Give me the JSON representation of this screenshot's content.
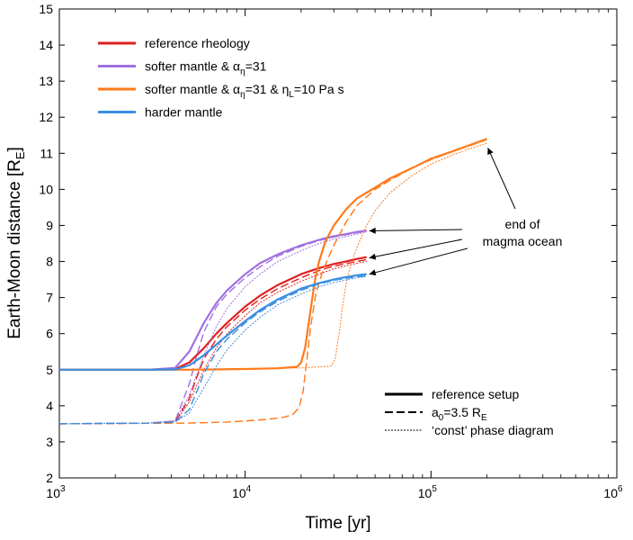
{
  "chart_data": {
    "type": "line",
    "xscale": "log",
    "xlim": [
      1000,
      1000000
    ],
    "ylim": [
      2,
      15
    ],
    "xlabel": "Time [yr]",
    "ylabel": "Earth-Moon distance [R",
    "ylabel_sub": "E",
    "ylabel_end": "]",
    "xticks": [
      {
        "value": 1000,
        "base": "10",
        "exp": "3"
      },
      {
        "value": 10000,
        "base": "10",
        "exp": "4"
      },
      {
        "value": 100000,
        "base": "10",
        "exp": "5"
      },
      {
        "value": 1000000,
        "base": "10",
        "exp": "6"
      }
    ],
    "yticks": [
      2,
      3,
      4,
      5,
      6,
      7,
      8,
      9,
      10,
      11,
      12,
      13,
      14,
      15
    ],
    "colors": {
      "reference": "#e02020",
      "softer": "#a070e0",
      "softer_eta": "#ff7a1a",
      "harder": "#3a8ee0"
    },
    "legend_colors": [
      {
        "name": "reference rheology",
        "color": "#e02020",
        "parts": [
          {
            "t": "reference rheology"
          }
        ]
      },
      {
        "name": "softer mantle & αη=31",
        "color": "#a070e0",
        "parts": [
          {
            "t": "softer mantle & α"
          },
          {
            "t": "η",
            "sub": true
          },
          {
            "t": "=31"
          }
        ]
      },
      {
        "name": "softer mantle & αη=31 & ηL=10 Pa s",
        "color": "#ff7a1a",
        "parts": [
          {
            "t": "softer mantle & α"
          },
          {
            "t": "η",
            "sub": true
          },
          {
            "t": "=31 & η"
          },
          {
            "t": "L",
            "sub": true
          },
          {
            "t": "=10 Pa s"
          }
        ]
      },
      {
        "name": "harder mantle",
        "color": "#3a8ee0",
        "parts": [
          {
            "t": "harder mantle"
          }
        ]
      }
    ],
    "legend_styles": [
      {
        "name": "reference setup",
        "style": "solid",
        "parts": [
          {
            "t": "reference setup"
          }
        ]
      },
      {
        "name": "a0=3.5 RE",
        "style": "dashed",
        "parts": [
          {
            "t": "a"
          },
          {
            "t": "0",
            "sub": true
          },
          {
            "t": "=3.5 R"
          },
          {
            "t": "E",
            "sub": true
          }
        ]
      },
      {
        "name": "'const' phase diagram",
        "style": "dotted",
        "parts": [
          {
            "t": "‘const’ phase diagram"
          }
        ]
      }
    ],
    "annotation": {
      "line1": "end of",
      "line2": "magma ocean",
      "targets": [
        [
          45000,
          8.85
        ],
        [
          45000,
          8.1
        ],
        [
          45000,
          7.65
        ],
        [
          200000,
          11.3
        ]
      ]
    },
    "series": [
      {
        "name": "reference rheology — reference setup",
        "color": "reference",
        "style": "solid",
        "x": [
          1000,
          3000,
          4200,
          5000,
          6000,
          7000,
          8000,
          10000,
          12000,
          15000,
          20000,
          25000,
          30000,
          35000,
          40000,
          45000
        ],
        "y": [
          5.0,
          5.0,
          5.02,
          5.2,
          5.6,
          6.0,
          6.3,
          6.75,
          7.05,
          7.35,
          7.65,
          7.82,
          7.93,
          8.0,
          8.07,
          8.12
        ]
      },
      {
        "name": "reference rheology — a0=3.5 RE",
        "color": "reference",
        "style": "dashed",
        "x": [
          1000,
          3000,
          4200,
          5000,
          5500,
          6000,
          7000,
          8000,
          10000,
          12000,
          15000,
          20000,
          25000,
          30000,
          40000,
          45000
        ],
        "y": [
          3.5,
          3.52,
          3.55,
          4.2,
          4.8,
          5.3,
          5.85,
          6.2,
          6.65,
          6.95,
          7.25,
          7.55,
          7.75,
          7.87,
          8.0,
          8.05
        ]
      },
      {
        "name": "reference rheology — 'const' phase diagram",
        "color": "reference",
        "style": "dotted",
        "x": [
          1000,
          3000,
          4200,
          5000,
          6000,
          7000,
          8000,
          10000,
          12000,
          15000,
          20000,
          25000,
          30000,
          40000,
          45000
        ],
        "y": [
          3.5,
          3.52,
          3.55,
          4.1,
          5.0,
          5.6,
          6.0,
          6.5,
          6.85,
          7.15,
          7.45,
          7.65,
          7.8,
          7.95,
          8.0
        ]
      },
      {
        "name": "softer mantle — reference setup",
        "color": "softer",
        "style": "solid",
        "x": [
          1000,
          3000,
          4200,
          5000,
          6000,
          7000,
          8000,
          10000,
          12000,
          15000,
          20000,
          25000,
          30000,
          35000,
          40000,
          45000
        ],
        "y": [
          5.0,
          5.0,
          5.05,
          5.5,
          6.3,
          6.85,
          7.2,
          7.65,
          7.95,
          8.2,
          8.45,
          8.6,
          8.7,
          8.76,
          8.82,
          8.86
        ]
      },
      {
        "name": "softer mantle — a0=3.5 RE",
        "color": "softer",
        "style": "dashed",
        "x": [
          1000,
          3000,
          4200,
          5000,
          5500,
          6000,
          7000,
          8000,
          10000,
          12000,
          15000,
          20000,
          25000,
          30000,
          40000,
          45000
        ],
        "y": [
          3.5,
          3.52,
          3.58,
          4.6,
          5.4,
          6.05,
          6.75,
          7.1,
          7.55,
          7.85,
          8.15,
          8.42,
          8.58,
          8.68,
          8.8,
          8.84
        ]
      },
      {
        "name": "softer mantle — 'const' phase diagram",
        "color": "softer",
        "style": "dotted",
        "x": [
          1000,
          3000,
          4200,
          5000,
          6000,
          7000,
          8000,
          10000,
          12000,
          15000,
          20000,
          25000,
          30000,
          40000,
          45000
        ],
        "y": [
          3.5,
          3.52,
          3.58,
          4.3,
          5.4,
          6.2,
          6.7,
          7.3,
          7.65,
          8.0,
          8.3,
          8.5,
          8.62,
          8.76,
          8.82
        ]
      },
      {
        "name": "softer mantle & etaL — reference setup",
        "color": "softer_eta",
        "style": "solid",
        "x": [
          1000,
          5000,
          10000,
          15000,
          19000,
          20000,
          21000,
          22000,
          23000,
          24000,
          25000,
          27000,
          30000,
          35000,
          40000,
          50000,
          60000,
          80000,
          100000,
          130000,
          160000,
          200000
        ],
        "y": [
          5.0,
          5.0,
          5.02,
          5.04,
          5.08,
          5.2,
          5.6,
          6.3,
          7.0,
          7.6,
          8.0,
          8.55,
          9.0,
          9.45,
          9.75,
          10.05,
          10.3,
          10.6,
          10.85,
          11.05,
          11.22,
          11.4
        ]
      },
      {
        "name": "softer mantle & etaL — a0=3.5 RE",
        "color": "softer_eta",
        "style": "dashed",
        "x": [
          1000,
          5000,
          8000,
          10000,
          13000,
          16000,
          18000,
          19500,
          20500,
          21500,
          22500,
          24000,
          26000,
          28000,
          30000,
          35000,
          40000,
          50000,
          60000,
          80000,
          100000,
          130000,
          160000,
          200000
        ],
        "y": [
          3.5,
          3.52,
          3.55,
          3.58,
          3.62,
          3.68,
          3.75,
          3.95,
          4.4,
          5.3,
          6.2,
          7.1,
          7.7,
          8.1,
          8.45,
          9.1,
          9.55,
          10.0,
          10.25,
          10.6,
          10.82,
          11.05,
          11.2,
          11.38
        ]
      },
      {
        "name": "softer mantle & etaL — 'const' phase diagram",
        "color": "softer_eta",
        "style": "dotted",
        "x": [
          1000,
          5000,
          10000,
          20000,
          29000,
          30500,
          32000,
          33500,
          35000,
          37000,
          40000,
          45000,
          50000,
          60000,
          80000,
          100000,
          130000,
          160000,
          200000
        ],
        "y": [
          5.0,
          5.0,
          5.02,
          5.05,
          5.1,
          5.3,
          6.0,
          6.8,
          7.4,
          7.9,
          8.4,
          9.0,
          9.4,
          9.9,
          10.4,
          10.7,
          10.95,
          11.12,
          11.28
        ]
      },
      {
        "name": "harder mantle — reference setup",
        "color": "harder",
        "style": "solid",
        "x": [
          1000,
          3000,
          4200,
          5000,
          6000,
          7000,
          8000,
          10000,
          12000,
          15000,
          20000,
          25000,
          30000,
          35000,
          40000,
          45000
        ],
        "y": [
          5.0,
          5.0,
          5.01,
          5.12,
          5.4,
          5.7,
          5.95,
          6.35,
          6.65,
          6.95,
          7.25,
          7.4,
          7.5,
          7.57,
          7.62,
          7.65
        ]
      },
      {
        "name": "harder mantle — a0=3.5 RE",
        "color": "harder",
        "style": "dashed",
        "x": [
          1000,
          3000,
          4200,
          5000,
          5500,
          6000,
          7000,
          8000,
          10000,
          12000,
          15000,
          20000,
          25000,
          30000,
          40000,
          45000
        ],
        "y": [
          3.5,
          3.52,
          3.55,
          3.9,
          4.4,
          4.9,
          5.5,
          5.85,
          6.3,
          6.6,
          6.9,
          7.2,
          7.38,
          7.48,
          7.58,
          7.6
        ]
      },
      {
        "name": "harder mantle — 'const' phase diagram",
        "color": "harder",
        "style": "dotted",
        "x": [
          1000,
          3000,
          4200,
          5000,
          6000,
          7000,
          8000,
          10000,
          12000,
          15000,
          20000,
          25000,
          30000,
          40000,
          45000
        ],
        "y": [
          3.5,
          3.52,
          3.55,
          3.8,
          4.5,
          5.1,
          5.55,
          6.1,
          6.45,
          6.8,
          7.1,
          7.3,
          7.42,
          7.55,
          7.58
        ]
      }
    ]
  }
}
